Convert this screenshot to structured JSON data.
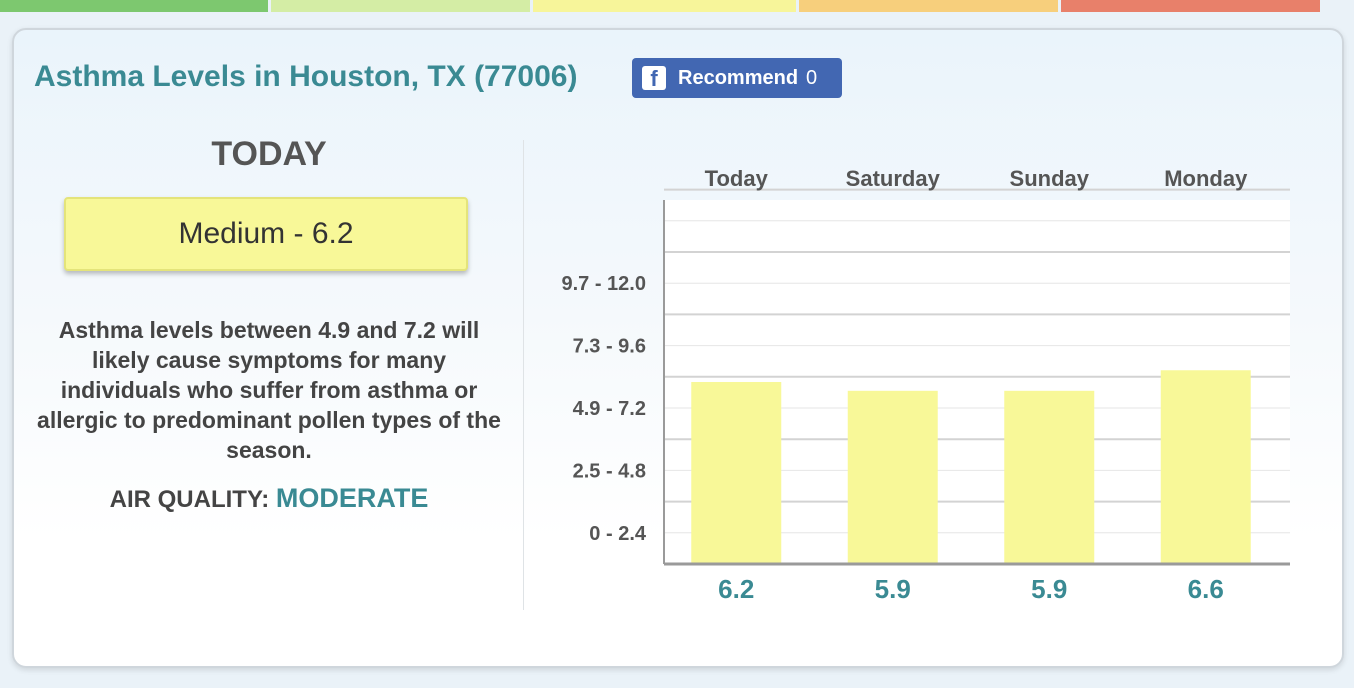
{
  "topbar": {
    "segments": [
      {
        "color": "#7dc86f"
      },
      {
        "color": "#d4eda5"
      },
      {
        "color": "#f7f59a"
      },
      {
        "color": "#f7cf7c"
      },
      {
        "color": "#e8806a"
      }
    ]
  },
  "header": {
    "title": "Asthma Levels in Houston, TX (77006)",
    "recommend_label": "Recommend",
    "recommend_count": "0",
    "fb_icon_glyph": "f"
  },
  "today": {
    "heading": "TODAY",
    "level_label": "Medium - 6.2",
    "level_color": "#f8f898",
    "description": "Asthma levels between 4.9 and 7.2 will likely cause symptoms for many individuals who suffer from asthma or allergic to predominant pollen types of the season.",
    "air_quality_label": "AIR QUALITY:",
    "air_quality_value": "MODERATE"
  },
  "chart_data": {
    "type": "bar",
    "categories": [
      "Today",
      "Saturday",
      "Sunday",
      "Monday"
    ],
    "values": [
      6.2,
      5.9,
      5.9,
      6.6
    ],
    "value_labels": [
      "6.2",
      "5.9",
      "5.9",
      "6.6"
    ],
    "y_tick_labels": [
      "0 - 2.4",
      "2.5 - 4.8",
      "4.9 - 7.2",
      "7.3 - 9.6",
      "9.7 - 12.0"
    ],
    "ylim": [
      0,
      12
    ],
    "bar_color": "#f8f898",
    "value_label_color": "#3a8a93",
    "grid": true,
    "title": "",
    "xlabel": "",
    "ylabel": ""
  }
}
